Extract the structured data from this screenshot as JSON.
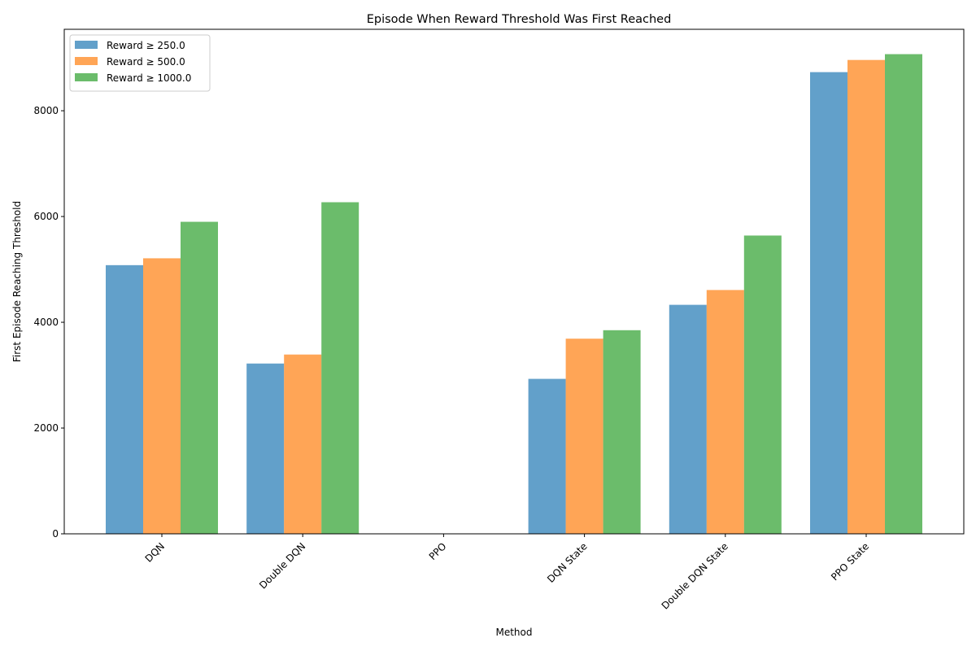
{
  "chart_data": {
    "type": "bar",
    "title": "Episode When Reward Threshold Was First Reached",
    "xlabel": "Method",
    "ylabel": "First Episode Reaching Threshold",
    "categories": [
      "DQN",
      "Double DQN",
      "PPO",
      "DQN State",
      "Double DQN State",
      "PPO State"
    ],
    "series": [
      {
        "name": "Reward ≥ 250.0",
        "color": "#1f77b4",
        "values": [
          5080,
          3220,
          0,
          2930,
          4330,
          8730
        ]
      },
      {
        "name": "Reward ≥ 500.0",
        "color": "#ff7f0e",
        "values": [
          5210,
          3390,
          0,
          3690,
          4610,
          8960
        ]
      },
      {
        "name": "Reward ≥ 1000.0",
        "color": "#2ca02c",
        "values": [
          5900,
          6270,
          0,
          3850,
          5640,
          9070
        ]
      }
    ],
    "yticks": [
      0,
      2000,
      4000,
      6000,
      8000
    ],
    "ylim": [
      0,
      9540
    ],
    "grid": false,
    "legend_position": "top-left"
  }
}
